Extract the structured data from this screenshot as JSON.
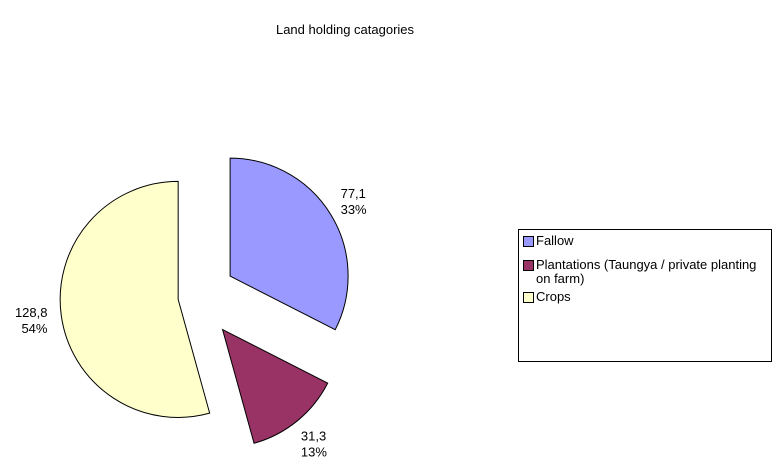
{
  "chart_data": {
    "type": "pie",
    "title": "Land holding catagories",
    "categories": [
      "Fallow",
      "Plantations (Taungya / private planting on farm)",
      "Crops"
    ],
    "values": [
      77.1,
      31.3,
      128.8
    ],
    "value_labels": [
      "77,1",
      "31,3",
      "128,8"
    ],
    "percent_labels": [
      "33%",
      "13%",
      "54%"
    ],
    "colors": [
      "#9999ff",
      "#993366",
      "#ffffcc"
    ],
    "legend": "right"
  }
}
